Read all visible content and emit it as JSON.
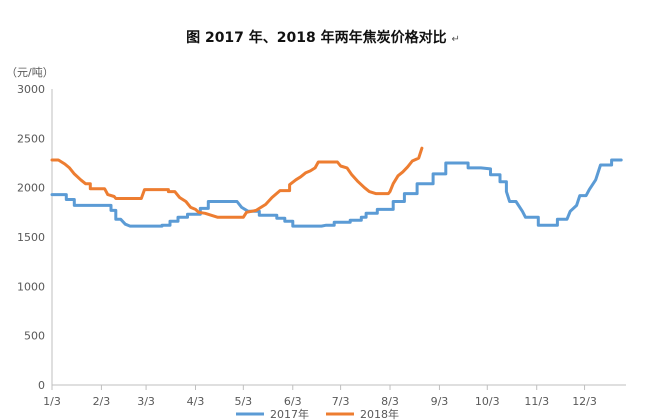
{
  "chart_data": {
    "type": "line",
    "title": "图 2017 年、2018 年两年焦炭价格对比",
    "title_mark": "↵",
    "unit_label": "（元/吨）",
    "xlabel": "",
    "ylabel": "",
    "ylim": [
      0,
      3000
    ],
    "yticks": [
      "0",
      "500",
      "1000",
      "1500",
      "2000",
      "2500",
      "3000"
    ],
    "x_range": [
      1,
      361
    ],
    "xticks": [
      {
        "label": "1/3",
        "day": 1
      },
      {
        "label": "2/3",
        "day": 32
      },
      {
        "label": "3/3",
        "day": 60
      },
      {
        "label": "4/3",
        "day": 91
      },
      {
        "label": "5/3",
        "day": 121
      },
      {
        "label": "6/3",
        "day": 152
      },
      {
        "label": "7/3",
        "day": 182
      },
      {
        "label": "8/3",
        "day": 213
      },
      {
        "label": "9/3",
        "day": 244
      },
      {
        "label": "10/3",
        "day": 274
      },
      {
        "label": "11/3",
        "day": 305
      },
      {
        "label": "12/3",
        "day": 335
      }
    ],
    "grid": false,
    "legend_position": "bottom",
    "series": [
      {
        "name": "2017年",
        "color": "#5B9BD5",
        "points": [
          [
            1,
            1930
          ],
          [
            10,
            1930
          ],
          [
            10,
            1880
          ],
          [
            15,
            1880
          ],
          [
            15,
            1820
          ],
          [
            27,
            1820
          ],
          [
            38,
            1820
          ],
          [
            38,
            1770
          ],
          [
            41,
            1770
          ],
          [
            41,
            1680
          ],
          [
            44,
            1680
          ],
          [
            47,
            1630
          ],
          [
            50,
            1610
          ],
          [
            70,
            1610
          ],
          [
            70,
            1620
          ],
          [
            75,
            1620
          ],
          [
            75,
            1660
          ],
          [
            80,
            1660
          ],
          [
            80,
            1700
          ],
          [
            86,
            1700
          ],
          [
            86,
            1730
          ],
          [
            94,
            1730
          ],
          [
            94,
            1790
          ],
          [
            99,
            1790
          ],
          [
            99,
            1860
          ],
          [
            117,
            1860
          ],
          [
            120,
            1800
          ],
          [
            124,
            1760
          ],
          [
            131,
            1760
          ],
          [
            131,
            1720
          ],
          [
            142,
            1720
          ],
          [
            142,
            1690
          ],
          [
            147,
            1690
          ],
          [
            147,
            1660
          ],
          [
            152,
            1660
          ],
          [
            152,
            1610
          ],
          [
            170,
            1610
          ],
          [
            173,
            1620
          ],
          [
            178,
            1620
          ],
          [
            178,
            1650
          ],
          [
            188,
            1650
          ],
          [
            188,
            1670
          ],
          [
            195,
            1670
          ],
          [
            195,
            1700
          ],
          [
            198,
            1700
          ],
          [
            198,
            1740
          ],
          [
            205,
            1740
          ],
          [
            205,
            1780
          ],
          [
            215,
            1780
          ],
          [
            215,
            1860
          ],
          [
            222,
            1860
          ],
          [
            222,
            1940
          ],
          [
            230,
            1940
          ],
          [
            230,
            2040
          ],
          [
            240,
            2040
          ],
          [
            240,
            2140
          ],
          [
            248,
            2140
          ],
          [
            248,
            2250
          ],
          [
            262,
            2250
          ],
          [
            262,
            2200
          ],
          [
            270,
            2200
          ],
          [
            276,
            2190
          ],
          [
            276,
            2130
          ],
          [
            282,
            2130
          ],
          [
            282,
            2060
          ],
          [
            286,
            2060
          ],
          [
            286,
            1960
          ],
          [
            288,
            1860
          ],
          [
            292,
            1860
          ],
          [
            296,
            1760
          ],
          [
            298,
            1700
          ],
          [
            306,
            1700
          ],
          [
            306,
            1620
          ],
          [
            318,
            1620
          ],
          [
            318,
            1680
          ],
          [
            324,
            1680
          ],
          [
            326,
            1760
          ],
          [
            330,
            1820
          ],
          [
            332,
            1920
          ],
          [
            336,
            1920
          ],
          [
            338,
            1980
          ],
          [
            342,
            2080
          ],
          [
            345,
            2230
          ],
          [
            352,
            2230
          ],
          [
            352,
            2280
          ],
          [
            358,
            2280
          ]
        ]
      },
      {
        "name": "2018年",
        "color": "#ED7D31",
        "points": [
          [
            1,
            2280
          ],
          [
            5,
            2280
          ],
          [
            9,
            2240
          ],
          [
            12,
            2200
          ],
          [
            15,
            2140
          ],
          [
            19,
            2080
          ],
          [
            22,
            2040
          ],
          [
            25,
            2040
          ],
          [
            25,
            1990
          ],
          [
            34,
            1990
          ],
          [
            36,
            1930
          ],
          [
            40,
            1910
          ],
          [
            41,
            1890
          ],
          [
            55,
            1890
          ],
          [
            57,
            1890
          ],
          [
            59,
            1980
          ],
          [
            74,
            1980
          ],
          [
            74,
            1960
          ],
          [
            78,
            1960
          ],
          [
            81,
            1900
          ],
          [
            85,
            1860
          ],
          [
            88,
            1800
          ],
          [
            91,
            1780
          ],
          [
            93,
            1750
          ],
          [
            97,
            1740
          ],
          [
            101,
            1720
          ],
          [
            105,
            1700
          ],
          [
            121,
            1700
          ],
          [
            123,
            1750
          ],
          [
            129,
            1770
          ],
          [
            131,
            1790
          ],
          [
            135,
            1830
          ],
          [
            139,
            1900
          ],
          [
            144,
            1970
          ],
          [
            150,
            1970
          ],
          [
            150,
            2030
          ],
          [
            154,
            2080
          ],
          [
            157,
            2110
          ],
          [
            160,
            2150
          ],
          [
            163,
            2170
          ],
          [
            166,
            2200
          ],
          [
            168,
            2260
          ],
          [
            180,
            2260
          ],
          [
            182,
            2220
          ],
          [
            186,
            2200
          ],
          [
            189,
            2130
          ],
          [
            193,
            2060
          ],
          [
            197,
            2000
          ],
          [
            200,
            1960
          ],
          [
            204,
            1940
          ],
          [
            212,
            1940
          ],
          [
            213,
            1960
          ],
          [
            215,
            2040
          ],
          [
            218,
            2120
          ],
          [
            221,
            2160
          ],
          [
            224,
            2210
          ],
          [
            227,
            2270
          ],
          [
            231,
            2300
          ],
          [
            233,
            2400
          ]
        ]
      }
    ]
  }
}
